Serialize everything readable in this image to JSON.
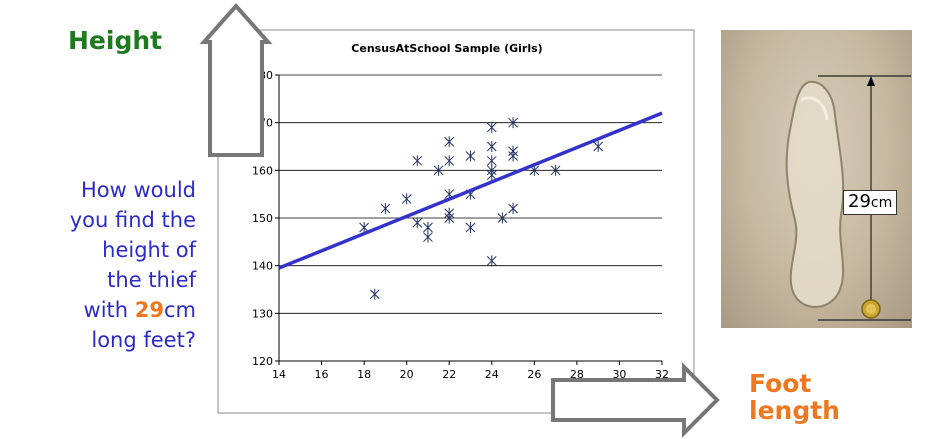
{
  "labels": {
    "height": "Height",
    "foot_line1": "Foot",
    "foot_line2": "length"
  },
  "question": {
    "line1": "How would",
    "line2": "you find the",
    "line3": "height of",
    "line4": "the thief",
    "line5_prefix": "with ",
    "line5_number": "29",
    "line5_suffix": "cm",
    "line6": "long feet?"
  },
  "photo": {
    "measure_number": "29",
    "measure_unit": "cm"
  },
  "colors": {
    "height_label": "#1e7a1e",
    "foot_label": "#ee7722",
    "question_text": "#2b2bcc",
    "regression_line": "#3333cc",
    "points": "#223366"
  },
  "chart_data": {
    "type": "scatter",
    "title": "CensusAtSchool Sample (Girls)",
    "xlabel": "",
    "ylabel": "",
    "xlim": [
      14,
      32
    ],
    "ylim": [
      120,
      180
    ],
    "xticks": [
      14,
      16,
      18,
      20,
      22,
      24,
      26,
      28,
      30,
      32
    ],
    "yticks": [
      120,
      130,
      140,
      150,
      160,
      170,
      180
    ],
    "grid": "horizontal",
    "series": [
      {
        "points": [
          [
            18,
            148
          ],
          [
            18.5,
            134
          ],
          [
            19,
            152
          ],
          [
            20,
            154
          ],
          [
            20.5,
            149
          ],
          [
            20.5,
            162
          ],
          [
            21,
            148
          ],
          [
            21,
            146
          ],
          [
            21.5,
            160
          ],
          [
            22,
            166
          ],
          [
            22,
            162
          ],
          [
            22,
            155
          ],
          [
            22,
            151
          ],
          [
            22,
            150
          ],
          [
            23,
            163
          ],
          [
            23,
            155
          ],
          [
            23,
            148
          ],
          [
            24,
            169
          ],
          [
            24,
            165
          ],
          [
            24,
            162
          ],
          [
            24,
            160
          ],
          [
            24,
            159
          ],
          [
            24,
            141
          ],
          [
            24.5,
            150
          ],
          [
            25,
            170
          ],
          [
            25,
            164
          ],
          [
            25,
            163
          ],
          [
            25,
            152
          ],
          [
            26,
            160
          ],
          [
            27,
            160
          ],
          [
            29,
            165
          ]
        ]
      }
    ],
    "trendline": {
      "x1": 14,
      "y1": 139.5,
      "x2": 32,
      "y2": 172
    }
  }
}
